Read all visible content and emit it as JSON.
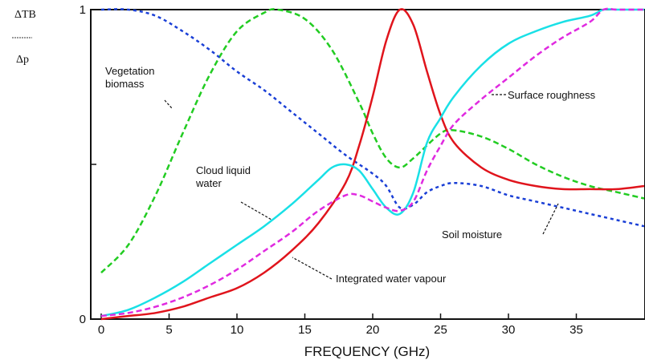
{
  "chart_data": {
    "type": "line",
    "xlabel": "FREQUENCY (GHz)",
    "ylabel_top": "ΔTB",
    "ylabel_bottom": "Δp",
    "xlim": [
      -1,
      40
    ],
    "ylim": [
      0,
      1
    ],
    "x_ticks": [
      0,
      5,
      10,
      15,
      20,
      25,
      30,
      35
    ],
    "y_tick_labels": [
      {
        "value": 0,
        "label": "0"
      },
      {
        "value": 1,
        "label": "1"
      }
    ],
    "y_ticks_unlabeled": [
      0.5
    ],
    "grid": false,
    "legend": "none",
    "series": [
      {
        "name": "Vegetation biomass",
        "color": "#22cc22",
        "dash": "dashed",
        "x": [
          0,
          2,
          4,
          6,
          8,
          10,
          12,
          13,
          15,
          17,
          19,
          20,
          21,
          22,
          23,
          25,
          26,
          28,
          30,
          32,
          34,
          36,
          38,
          40
        ],
        "y": [
          0.15,
          0.24,
          0.4,
          0.6,
          0.79,
          0.93,
          0.99,
          1.0,
          0.97,
          0.87,
          0.7,
          0.6,
          0.52,
          0.49,
          0.52,
          0.6,
          0.61,
          0.59,
          0.55,
          0.5,
          0.46,
          0.43,
          0.41,
          0.39
        ]
      },
      {
        "name": "Soil moisture",
        "color": "#1a3fd6",
        "dash": "dotted",
        "x": [
          0,
          2,
          4,
          6,
          8,
          10,
          12,
          14,
          16,
          18,
          20,
          21,
          22,
          23,
          24,
          25,
          26,
          28,
          30,
          32,
          34,
          36,
          38,
          40
        ],
        "y": [
          1.0,
          1.0,
          0.98,
          0.93,
          0.87,
          0.8,
          0.74,
          0.67,
          0.6,
          0.53,
          0.47,
          0.43,
          0.36,
          0.37,
          0.41,
          0.43,
          0.44,
          0.43,
          0.4,
          0.38,
          0.36,
          0.34,
          0.32,
          0.3
        ]
      },
      {
        "name": "Integrated water vapour",
        "color": "#e0141c",
        "dash": "solid",
        "x": [
          0,
          2,
          4,
          6,
          8,
          10,
          12,
          14,
          16,
          18,
          19,
          20,
          21,
          22,
          23,
          24,
          25,
          26,
          28,
          30,
          32,
          34,
          36,
          38,
          40
        ],
        "y": [
          0.0,
          0.01,
          0.02,
          0.04,
          0.07,
          0.1,
          0.15,
          0.22,
          0.31,
          0.44,
          0.56,
          0.72,
          0.9,
          1.0,
          0.95,
          0.8,
          0.66,
          0.57,
          0.49,
          0.45,
          0.43,
          0.42,
          0.42,
          0.42,
          0.43
        ]
      },
      {
        "name": "Cloud liquid water",
        "color": "#19e0e6",
        "dash": "solid",
        "x": [
          0,
          2,
          4,
          6,
          8,
          10,
          12,
          14,
          16,
          17,
          18,
          19,
          20,
          21,
          22,
          23,
          24,
          25,
          26,
          28,
          30,
          32,
          34,
          36,
          37,
          38,
          40
        ],
        "y": [
          0.01,
          0.03,
          0.07,
          0.12,
          0.18,
          0.24,
          0.3,
          0.37,
          0.45,
          0.49,
          0.5,
          0.48,
          0.42,
          0.36,
          0.34,
          0.41,
          0.57,
          0.65,
          0.72,
          0.82,
          0.89,
          0.93,
          0.96,
          0.98,
          1.0,
          1.0,
          1.0
        ]
      },
      {
        "name": "Surface roughness",
        "color": "#e02ae0",
        "dash": "dashed",
        "x": [
          0,
          2,
          4,
          6,
          8,
          10,
          12,
          14,
          16,
          18,
          19,
          20,
          21,
          22,
          23,
          24,
          25,
          26,
          28,
          30,
          32,
          34,
          36,
          37,
          38,
          40
        ],
        "y": [
          0.01,
          0.02,
          0.04,
          0.07,
          0.11,
          0.16,
          0.22,
          0.28,
          0.35,
          0.4,
          0.4,
          0.38,
          0.36,
          0.35,
          0.38,
          0.48,
          0.56,
          0.63,
          0.71,
          0.78,
          0.85,
          0.91,
          0.96,
          1.0,
          1.0,
          1.0
        ]
      }
    ],
    "annotations": [
      {
        "lines": [
          "Vegetation",
          "biomass"
        ],
        "series": "Vegetation biomass",
        "target": [
          6.2,
          0.67
        ]
      },
      {
        "lines": [
          "Surface roughness"
        ],
        "series": "Surface roughness",
        "target": [
          29.5,
          0.7
        ]
      },
      {
        "lines": [
          "Cloud liquid",
          "water"
        ],
        "series": "Cloud liquid water",
        "target": [
          15.5,
          0.43
        ]
      },
      {
        "lines": [
          "Soil moisture"
        ],
        "series": "Soil moisture",
        "target": [
          33.7,
          0.36
        ]
      },
      {
        "lines": [
          "Integrated water vapour"
        ],
        "series": "Integrated water vapour",
        "target": [
          14.2,
          0.19
        ]
      }
    ]
  }
}
